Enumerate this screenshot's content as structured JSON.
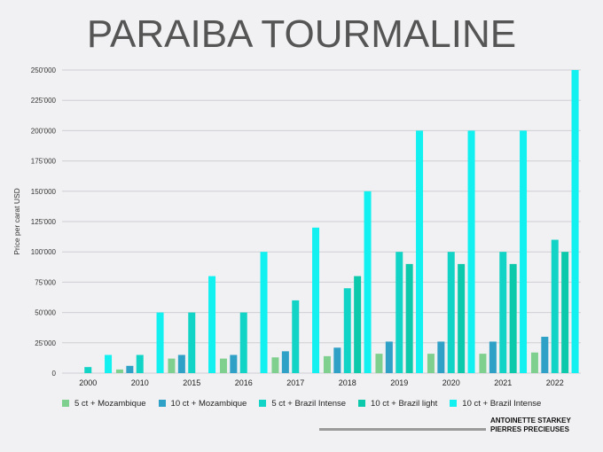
{
  "title": "PARAIBA TOURMALINE",
  "brand": {
    "line1": "ANTOINETTE STARKEY",
    "line2": "PIERRES PRECIEUSES"
  },
  "chart_data": {
    "type": "bar",
    "title": "PARAIBA TOURMALINE",
    "xlabel": "",
    "ylabel": "Price per carat USD",
    "ylim": [
      0,
      250000
    ],
    "yticks": [
      0,
      25000,
      50000,
      75000,
      100000,
      125000,
      150000,
      175000,
      200000,
      225000,
      250000
    ],
    "ytick_labels": [
      "0",
      "25'000",
      "50'000",
      "75'000",
      "100'000",
      "125'000",
      "150'000",
      "175'000",
      "200'000",
      "225'000",
      "250'000"
    ],
    "grid": true,
    "legend_position": "bottom",
    "categories": [
      "2000",
      "2010",
      "2015",
      "2016",
      "2017",
      "2018",
      "2019",
      "2020",
      "2021",
      "2022"
    ],
    "series": [
      {
        "name": "5 ct + Mozambique",
        "color": "#7fd08f",
        "values": [
          0,
          3000,
          12000,
          12000,
          13000,
          14000,
          16000,
          16000,
          16000,
          17000
        ]
      },
      {
        "name": "10 ct + Mozambique",
        "color": "#2fa0c6",
        "values": [
          0,
          6000,
          15000,
          15000,
          18000,
          21000,
          26000,
          26000,
          26000,
          30000
        ]
      },
      {
        "name": "5 ct + Brazil Intense",
        "color": "#12d4c6",
        "values": [
          5000,
          15000,
          50000,
          50000,
          60000,
          70000,
          100000,
          100000,
          100000,
          110000
        ]
      },
      {
        "name": "10 ct + Brazil light",
        "color": "#0dc9ab",
        "values": [
          0,
          0,
          0,
          0,
          0,
          80000,
          90000,
          90000,
          90000,
          100000
        ]
      },
      {
        "name": "10 ct + Brazil Intense",
        "color": "#12f0f0",
        "values": [
          15000,
          50000,
          80000,
          100000,
          120000,
          150000,
          200000,
          200000,
          200000,
          250000
        ]
      }
    ]
  }
}
